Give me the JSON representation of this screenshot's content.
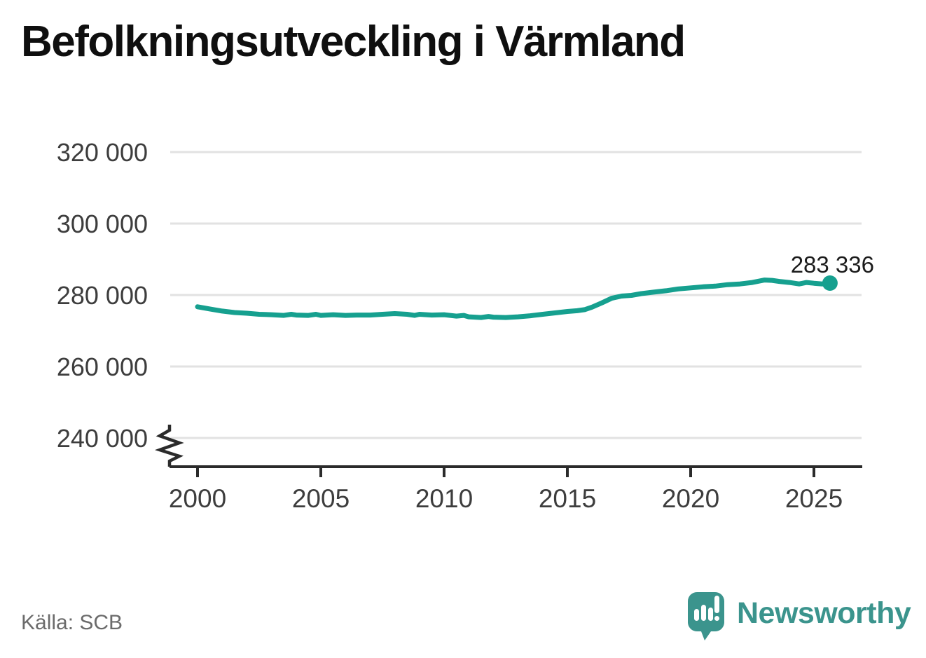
{
  "page": {
    "title": "Befolkningsutveckling i Värmland",
    "source": "Källa: SCB"
  },
  "branding": {
    "wordmark": "Newsworthy",
    "logo_icon": "speech-bubble-with-bar-chart-and-exclamation",
    "brand_color": "#3b948d"
  },
  "colors": {
    "background": "#ffffff",
    "line": "#16a08f",
    "grid": "#e2e2e2",
    "axis": "#2b2b2b",
    "tick_label": "#3d3d3d",
    "title": "#0f0f0f",
    "source_text": "#6b6b6b",
    "end_label": "#1c1c1c",
    "brand": "#3b948d"
  },
  "chart_data": {
    "type": "line",
    "title": "Befolkningsutveckling i Värmland",
    "xlabel": "",
    "ylabel": "",
    "grid": "horizontal",
    "legend": "none",
    "axis_break_below_ymin": true,
    "xticks": [
      2000,
      2005,
      2010,
      2015,
      2020,
      2025
    ],
    "xlim": [
      1998.9,
      2026.9
    ],
    "ylim_display": [
      233000,
      327000
    ],
    "yticks": [
      {
        "value": 240000,
        "label": "240 000"
      },
      {
        "value": 260000,
        "label": "260 000"
      },
      {
        "value": 280000,
        "label": "280 000"
      },
      {
        "value": 300000,
        "label": "300 000"
      },
      {
        "value": 320000,
        "label": "320 000"
      }
    ],
    "series": [
      {
        "name": "Värmland",
        "color": "#16a08f",
        "end_label": "283 336",
        "end_value": 283336,
        "points": [
          [
            2000.0,
            276700
          ],
          [
            2000.5,
            276100
          ],
          [
            2001.0,
            275500
          ],
          [
            2001.5,
            275100
          ],
          [
            2002.0,
            274900
          ],
          [
            2002.5,
            274600
          ],
          [
            2003.0,
            274500
          ],
          [
            2003.5,
            274300
          ],
          [
            2003.8,
            274600
          ],
          [
            2004.0,
            274400
          ],
          [
            2004.5,
            274300
          ],
          [
            2004.8,
            274600
          ],
          [
            2005.0,
            274300
          ],
          [
            2005.5,
            274500
          ],
          [
            2006.0,
            274300
          ],
          [
            2006.5,
            274400
          ],
          [
            2007.0,
            274400
          ],
          [
            2007.5,
            274600
          ],
          [
            2008.0,
            274800
          ],
          [
            2008.5,
            274600
          ],
          [
            2008.8,
            274300
          ],
          [
            2009.0,
            274600
          ],
          [
            2009.5,
            274400
          ],
          [
            2010.0,
            274500
          ],
          [
            2010.5,
            274100
          ],
          [
            2010.8,
            274300
          ],
          [
            2011.0,
            273900
          ],
          [
            2011.5,
            273700
          ],
          [
            2011.8,
            274000
          ],
          [
            2012.0,
            273800
          ],
          [
            2012.5,
            273700
          ],
          [
            2013.0,
            273900
          ],
          [
            2013.5,
            274200
          ],
          [
            2014.0,
            274600
          ],
          [
            2014.5,
            275000
          ],
          [
            2015.0,
            275400
          ],
          [
            2015.4,
            275600
          ],
          [
            2015.7,
            275900
          ],
          [
            2016.0,
            276600
          ],
          [
            2016.4,
            277800
          ],
          [
            2016.8,
            279100
          ],
          [
            2017.2,
            279700
          ],
          [
            2017.6,
            279900
          ],
          [
            2018.0,
            280400
          ],
          [
            2018.5,
            280800
          ],
          [
            2019.0,
            281200
          ],
          [
            2019.5,
            281700
          ],
          [
            2020.0,
            282000
          ],
          [
            2020.5,
            282300
          ],
          [
            2021.0,
            282500
          ],
          [
            2021.5,
            282900
          ],
          [
            2022.0,
            283100
          ],
          [
            2022.5,
            283500
          ],
          [
            2023.0,
            284200
          ],
          [
            2023.3,
            284100
          ],
          [
            2023.6,
            283800
          ],
          [
            2024.0,
            283500
          ],
          [
            2024.4,
            283100
          ],
          [
            2024.7,
            283500
          ],
          [
            2025.0,
            283300
          ],
          [
            2025.35,
            283100
          ],
          [
            2025.65,
            283336
          ]
        ]
      }
    ]
  }
}
